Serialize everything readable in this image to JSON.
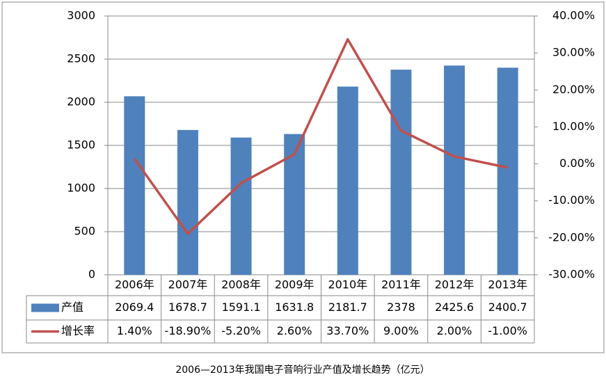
{
  "chart_data": {
    "type": "bar-line",
    "title": "2006—2013年我国电子音响行业产值及增长趋势（亿元）",
    "categories": [
      "2006年",
      "2007年",
      "2008年",
      "2009年",
      "2010年",
      "2011年",
      "2012年",
      "2013年"
    ],
    "series": [
      {
        "name": "产值",
        "type": "bar",
        "color": "#4f81bd",
        "values": [
          2069.4,
          1678.7,
          1591.1,
          1631.8,
          2181.7,
          2378,
          2425.6,
          2400.7
        ]
      },
      {
        "name": "增长率",
        "type": "line",
        "axis": "y2",
        "color": "#c0504d",
        "values": [
          1.4,
          -18.9,
          -5.2,
          2.6,
          33.7,
          9.0,
          2.0,
          -1.0
        ],
        "value_labels": [
          "1.40%",
          "-18.90%",
          "-5.20%",
          "2.60%",
          "33.70%",
          "9.00%",
          "2.00%",
          "-1.00%"
        ]
      }
    ],
    "ylim": [
      0,
      3000
    ],
    "yticks": [
      0,
      500,
      1000,
      1500,
      2000,
      2500,
      3000
    ],
    "y2lim": [
      -30,
      40
    ],
    "y2ticks": [
      {
        "value": -30,
        "label": "-30.00%"
      },
      {
        "value": -20,
        "label": "-20.00%"
      },
      {
        "value": -10,
        "label": "-10.00%"
      },
      {
        "value": 0,
        "label": "0.00%"
      },
      {
        "value": 10,
        "label": "10.00%"
      },
      {
        "value": 20,
        "label": "20.00%"
      },
      {
        "value": 30,
        "label": "30.00%"
      },
      {
        "value": 40,
        "label": "40.00%"
      }
    ],
    "grid": true
  }
}
